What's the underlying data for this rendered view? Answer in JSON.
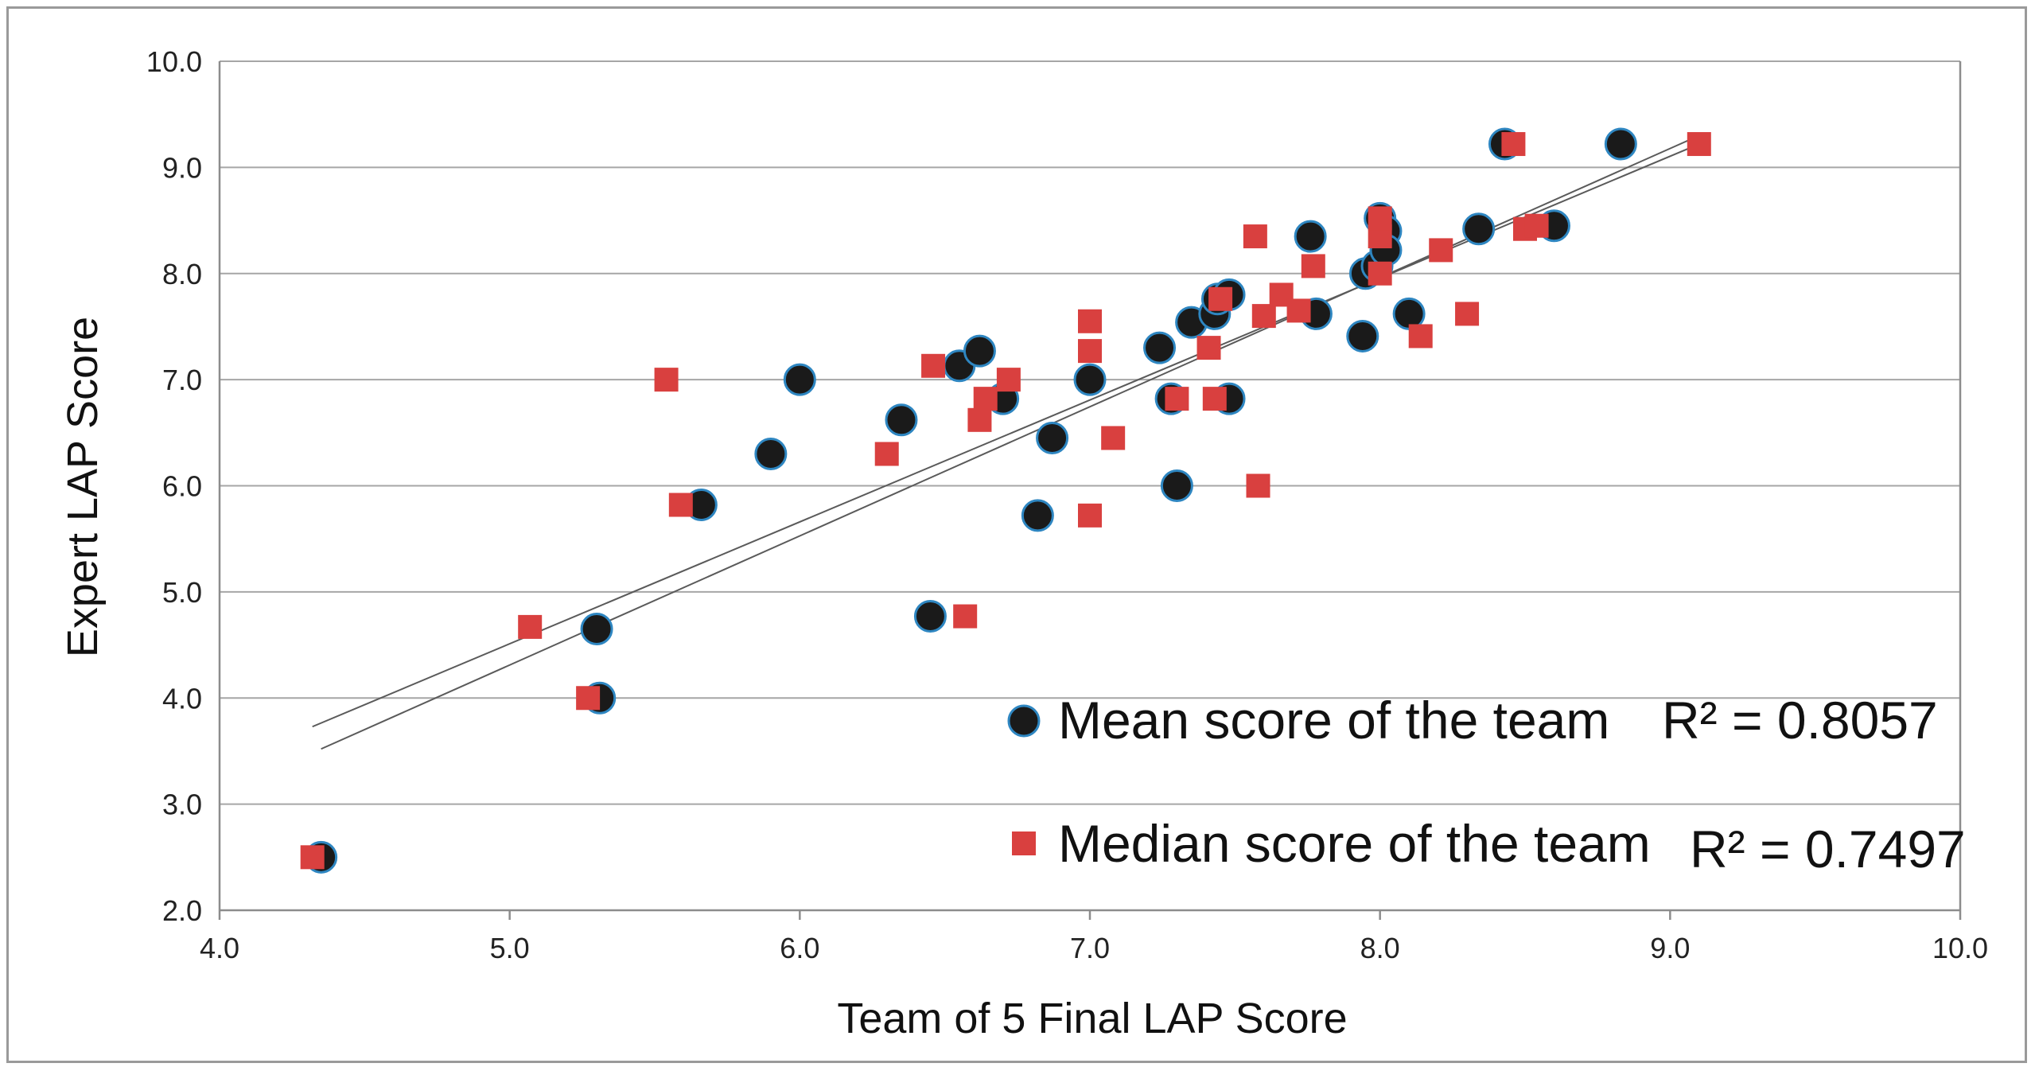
{
  "chart_data": {
    "type": "scatter",
    "title": "",
    "xlabel": "Team of 5 Final LAP Score",
    "ylabel": "Expert LAP Score",
    "xlim": [
      4.0,
      10.0
    ],
    "ylim": [
      2.0,
      10.0
    ],
    "xticks": [
      "4.0",
      "5.0",
      "6.0",
      "7.0",
      "8.0",
      "9.0",
      "10.0"
    ],
    "yticks": [
      "2.0",
      "3.0",
      "4.0",
      "5.0",
      "6.0",
      "7.0",
      "8.0",
      "9.0",
      "10.0"
    ],
    "grid": "horizontal",
    "legend_position": "bottom-right",
    "series": [
      {
        "name": "Mean score of the team",
        "marker": "circle",
        "color": "#1a1a1a",
        "edge_color": "#2e86c1",
        "r2_label": "R² = 0.8057",
        "trendline": {
          "x": [
            4.35,
            9.1
          ],
          "y": [
            3.52,
            9.3
          ]
        },
        "points": [
          [
            4.35,
            2.5
          ],
          [
            5.3,
            4.65
          ],
          [
            5.31,
            4.0
          ],
          [
            5.66,
            5.82
          ],
          [
            5.9,
            6.3
          ],
          [
            6.0,
            7.0
          ],
          [
            6.35,
            6.62
          ],
          [
            6.45,
            4.77
          ],
          [
            6.55,
            7.13
          ],
          [
            6.62,
            7.27
          ],
          [
            6.7,
            6.82
          ],
          [
            6.82,
            5.72
          ],
          [
            6.87,
            6.45
          ],
          [
            7.0,
            7.0
          ],
          [
            7.24,
            7.3
          ],
          [
            7.28,
            6.82
          ],
          [
            7.3,
            6.0
          ],
          [
            7.35,
            7.54
          ],
          [
            7.43,
            7.62
          ],
          [
            7.44,
            7.76
          ],
          [
            7.48,
            7.8
          ],
          [
            7.48,
            6.82
          ],
          [
            7.76,
            8.35
          ],
          [
            7.78,
            7.62
          ],
          [
            7.94,
            7.41
          ],
          [
            7.95,
            8.0
          ],
          [
            7.99,
            8.07
          ],
          [
            8.0,
            8.52
          ],
          [
            8.02,
            8.4
          ],
          [
            8.02,
            8.22
          ],
          [
            8.1,
            7.62
          ],
          [
            8.34,
            8.42
          ],
          [
            8.43,
            9.22
          ],
          [
            8.6,
            8.45
          ],
          [
            8.83,
            9.22
          ]
        ]
      },
      {
        "name": "Median score of the team",
        "marker": "square",
        "color": "#d9403f",
        "r2_label": "R² = 0.7497",
        "trendline": {
          "x": [
            4.32,
            9.1
          ],
          "y": [
            3.73,
            9.22
          ]
        },
        "points": [
          [
            4.32,
            2.5
          ],
          [
            5.07,
            4.67
          ],
          [
            5.27,
            4.0
          ],
          [
            5.54,
            7.0
          ],
          [
            5.59,
            5.82
          ],
          [
            6.3,
            6.3
          ],
          [
            6.46,
            7.13
          ],
          [
            6.57,
            4.77
          ],
          [
            6.62,
            6.62
          ],
          [
            6.64,
            6.82
          ],
          [
            6.72,
            7.0
          ],
          [
            7.0,
            7.55
          ],
          [
            7.0,
            7.27
          ],
          [
            7.0,
            5.72
          ],
          [
            7.08,
            6.45
          ],
          [
            7.3,
            6.82
          ],
          [
            7.41,
            7.3
          ],
          [
            7.43,
            6.82
          ],
          [
            7.45,
            7.76
          ],
          [
            7.57,
            8.35
          ],
          [
            7.58,
            6.0
          ],
          [
            7.6,
            7.6
          ],
          [
            7.66,
            7.8
          ],
          [
            7.72,
            7.65
          ],
          [
            7.77,
            8.07
          ],
          [
            8.0,
            8.0
          ],
          [
            8.0,
            8.35
          ],
          [
            8.0,
            8.52
          ],
          [
            8.14,
            7.41
          ],
          [
            8.21,
            8.22
          ],
          [
            8.3,
            7.62
          ],
          [
            8.46,
            9.22
          ],
          [
            8.5,
            8.42
          ],
          [
            8.54,
            8.45
          ],
          [
            9.1,
            9.22
          ]
        ]
      }
    ]
  }
}
